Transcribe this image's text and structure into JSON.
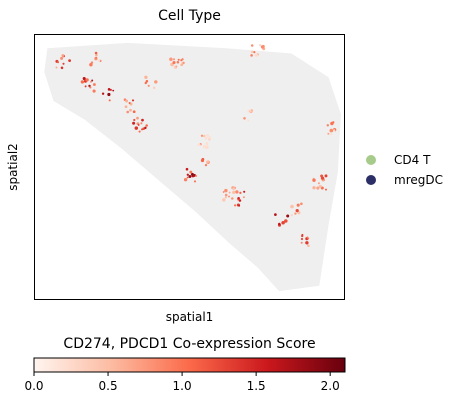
{
  "chart_data": [
    {
      "type": "scatter",
      "title": "Cell Type",
      "xlabel": "spatial1",
      "ylabel": "spatial2",
      "legend": {
        "placement": "right",
        "entries": [
          {
            "label": "CD4 T",
            "color": "#a6cb8b"
          },
          {
            "label": "mregDC",
            "color": "#2b2f66"
          }
        ]
      },
      "background_color": "#efefef",
      "note_colors": "points colored by co-expression score (Reds colormap)",
      "hotspots": [
        {
          "x": 0.09,
          "y": 0.1,
          "score": 1.6
        },
        {
          "x": 0.2,
          "y": 0.09,
          "score": 1.2
        },
        {
          "x": 0.17,
          "y": 0.19,
          "score": 1.8
        },
        {
          "x": 0.24,
          "y": 0.23,
          "score": 1.9
        },
        {
          "x": 0.3,
          "y": 0.27,
          "score": 1.5
        },
        {
          "x": 0.34,
          "y": 0.34,
          "score": 1.7
        },
        {
          "x": 0.38,
          "y": 0.18,
          "score": 1.3
        },
        {
          "x": 0.46,
          "y": 0.1,
          "score": 1.1
        },
        {
          "x": 0.51,
          "y": 0.53,
          "score": 1.9
        },
        {
          "x": 0.56,
          "y": 0.48,
          "score": 1.4
        },
        {
          "x": 0.63,
          "y": 0.6,
          "score": 1.2
        },
        {
          "x": 0.67,
          "y": 0.62,
          "score": 1.6
        },
        {
          "x": 0.8,
          "y": 0.7,
          "score": 2.0
        },
        {
          "x": 0.84,
          "y": 0.66,
          "score": 1.3
        },
        {
          "x": 0.88,
          "y": 0.78,
          "score": 1.5
        },
        {
          "x": 0.92,
          "y": 0.56,
          "score": 1.4
        },
        {
          "x": 0.72,
          "y": 0.06,
          "score": 1.0
        },
        {
          "x": 0.55,
          "y": 0.4,
          "score": 0.9
        },
        {
          "x": 0.7,
          "y": 0.3,
          "score": 0.8
        },
        {
          "x": 0.96,
          "y": 0.35,
          "score": 1.1
        }
      ]
    },
    {
      "type": "colorbar",
      "title": "CD274, PDCD1 Co-expression Score",
      "cmap": "Reds",
      "range": [
        0,
        2.1
      ],
      "ticks": [
        "0.0",
        "0.5",
        "1.0",
        "1.5",
        "2.0"
      ],
      "tick_values": [
        0.0,
        0.5,
        1.0,
        1.5,
        2.0
      ]
    }
  ]
}
